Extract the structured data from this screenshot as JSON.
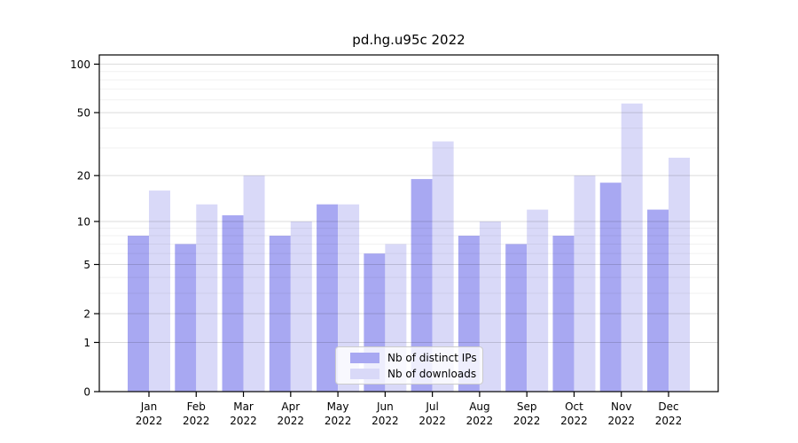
{
  "chart_data": {
    "type": "bar",
    "title": "pd.hg.u95c 2022",
    "categories": [
      "Jan",
      "Feb",
      "Mar",
      "Apr",
      "May",
      "Jun",
      "Jul",
      "Aug",
      "Sep",
      "Oct",
      "Nov",
      "Dec"
    ],
    "x_tick_second_line": "2022",
    "series": [
      {
        "name": "Nb of distinct IPs",
        "color": "#a8a8f2",
        "values": [
          8,
          7,
          11,
          8,
          13,
          6,
          19,
          8,
          7,
          8,
          18,
          12
        ]
      },
      {
        "name": "Nb of downloads",
        "color": "#d9d9f8",
        "values": [
          16,
          13,
          20,
          10,
          13,
          7,
          33,
          10,
          12,
          20,
          57,
          26
        ]
      }
    ],
    "yscale": "log1p",
    "ylim": [
      0,
      114
    ],
    "yticks": [
      0,
      1,
      2,
      5,
      10,
      20,
      50,
      100
    ],
    "yticks_minor": [
      3,
      4,
      6,
      7,
      8,
      9,
      30,
      40,
      60,
      70,
      80,
      90
    ],
    "grid": true,
    "legend_position": "lower center"
  }
}
